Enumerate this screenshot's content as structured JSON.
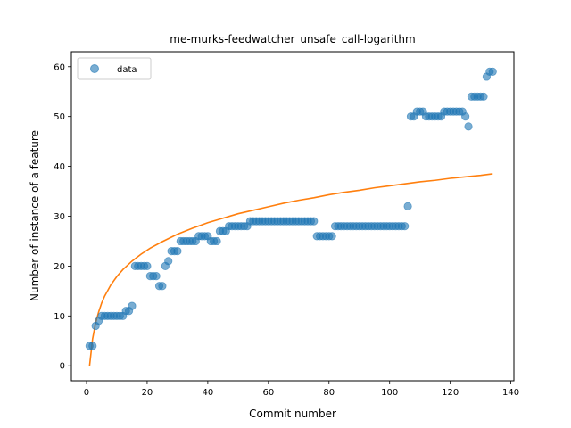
{
  "chart_data": {
    "type": "scatter",
    "title": "me-murks-feedwatcher_unsafe_call-logarithm",
    "xlabel": "Commit number",
    "ylabel": "Number of instance of a feature",
    "xlim": [
      -5,
      141
    ],
    "ylim": [
      -3,
      63
    ],
    "xticks": [
      0,
      20,
      40,
      60,
      80,
      100,
      120,
      140
    ],
    "yticks": [
      0,
      10,
      20,
      30,
      40,
      50,
      60
    ],
    "legend": {
      "position": "top-left",
      "entries": [
        "data"
      ]
    },
    "colors": {
      "data": "#1f77b4",
      "fit": "#ff7f0e"
    },
    "series": [
      {
        "name": "data",
        "kind": "scatter",
        "x": [
          1,
          2,
          3,
          4,
          5,
          6,
          7,
          8,
          9,
          10,
          11,
          12,
          13,
          14,
          15,
          16,
          17,
          18,
          19,
          20,
          21,
          22,
          23,
          24,
          25,
          26,
          27,
          28,
          29,
          30,
          31,
          32,
          33,
          34,
          35,
          36,
          37,
          38,
          39,
          40,
          41,
          42,
          43,
          44,
          45,
          46,
          47,
          48,
          49,
          50,
          51,
          52,
          53,
          54,
          55,
          56,
          57,
          58,
          59,
          60,
          61,
          62,
          63,
          64,
          65,
          66,
          67,
          68,
          69,
          70,
          71,
          72,
          73,
          74,
          75,
          76,
          77,
          78,
          79,
          80,
          81,
          82,
          83,
          84,
          85,
          86,
          87,
          88,
          89,
          90,
          91,
          92,
          93,
          94,
          95,
          96,
          97,
          98,
          99,
          100,
          101,
          102,
          103,
          104,
          105,
          106,
          107,
          108,
          109,
          110,
          111,
          112,
          113,
          114,
          115,
          116,
          117,
          118,
          119,
          120,
          121,
          122,
          123,
          124,
          125,
          126,
          127,
          128,
          129,
          130,
          131,
          132,
          133,
          134
        ],
        "y": [
          4,
          4,
          8,
          9,
          10,
          10,
          10,
          10,
          10,
          10,
          10,
          10,
          11,
          11,
          12,
          20,
          20,
          20,
          20,
          20,
          18,
          18,
          18,
          16,
          16,
          20,
          21,
          23,
          23,
          23,
          25,
          25,
          25,
          25,
          25,
          25,
          26,
          26,
          26,
          26,
          25,
          25,
          25,
          27,
          27,
          27,
          28,
          28,
          28,
          28,
          28,
          28,
          28,
          29,
          29,
          29,
          29,
          29,
          29,
          29,
          29,
          29,
          29,
          29,
          29,
          29,
          29,
          29,
          29,
          29,
          29,
          29,
          29,
          29,
          29,
          26,
          26,
          26,
          26,
          26,
          26,
          28,
          28,
          28,
          28,
          28,
          28,
          28,
          28,
          28,
          28,
          28,
          28,
          28,
          28,
          28,
          28,
          28,
          28,
          28,
          28,
          28,
          28,
          28,
          28,
          32,
          50,
          50,
          51,
          51,
          51,
          50,
          50,
          50,
          50,
          50,
          50,
          51,
          51,
          51,
          51,
          51,
          51,
          51,
          50,
          48,
          54,
          54,
          54,
          54,
          54,
          58,
          59,
          59
        ]
      },
      {
        "kind": "line",
        "x": [
          1,
          2,
          3,
          4,
          5,
          6,
          8,
          10,
          12,
          15,
          18,
          21,
          25,
          30,
          35,
          40,
          45,
          50,
          55,
          60,
          65,
          70,
          75,
          80,
          85,
          90,
          95,
          100,
          105,
          110,
          115,
          120,
          125,
          130,
          134
        ],
        "y": [
          0,
          5.4,
          8.6,
          10.8,
          12.6,
          14.0,
          16.2,
          17.9,
          19.3,
          21.0,
          22.4,
          23.6,
          24.9,
          26.4,
          27.6,
          28.7,
          29.6,
          30.5,
          31.2,
          31.9,
          32.6,
          33.2,
          33.7,
          34.3,
          34.8,
          35.2,
          35.7,
          36.1,
          36.5,
          36.9,
          37.2,
          37.6,
          37.9,
          38.2,
          38.5
        ]
      }
    ]
  }
}
